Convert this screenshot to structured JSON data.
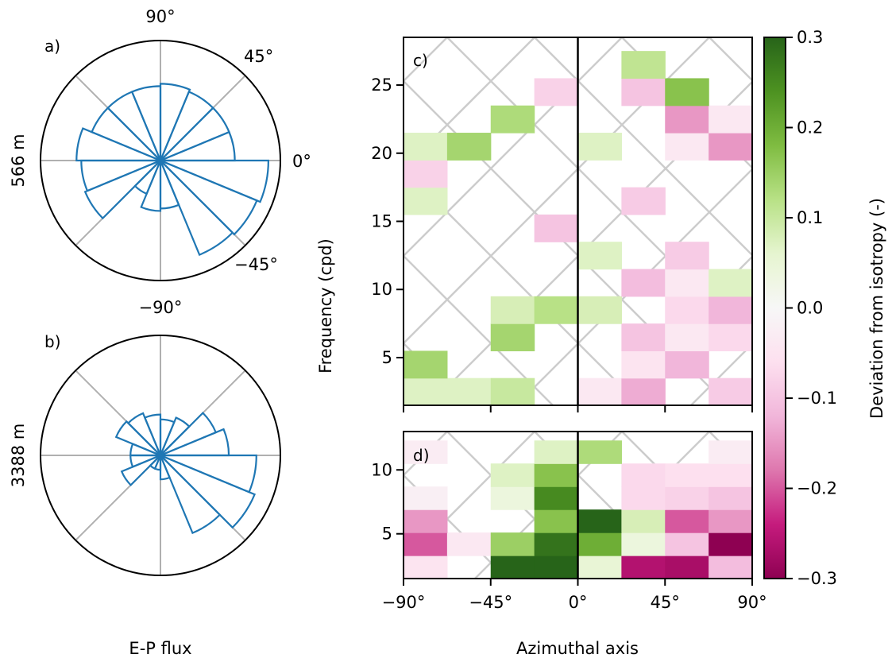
{
  "colors": {
    "rose_line": "#1f77b4",
    "grid": "#b0b0b0",
    "hatch": "#cccccc",
    "axis": "#000000"
  },
  "footer": {
    "polar_xlabel": "E-P flux"
  },
  "chart_data": [
    {
      "panel": "a)",
      "type": "polar_rose",
      "ylabel": "566 m",
      "angle_labels": [
        "90°",
        "45°",
        "0°",
        "−45°",
        "−90°"
      ],
      "bin_width_deg": 22.5,
      "bin_centers_deg": [
        11.25,
        33.75,
        56.25,
        78.75,
        101.25,
        123.75,
        146.25,
        168.75,
        191.25,
        213.75,
        236.25,
        258.75,
        281.25,
        303.75,
        326.25,
        348.75
      ],
      "magnitudes": [
        0.62,
        0.62,
        0.62,
        0.64,
        0.62,
        0.62,
        0.62,
        0.7,
        0.66,
        0.68,
        0.3,
        0.42,
        0.4,
        0.85,
        0.87,
        0.9
      ],
      "rlim": [
        0,
        1
      ]
    },
    {
      "panel": "b)",
      "type": "polar_rose",
      "ylabel": "3388 m",
      "angle_labels": [
        "90°",
        "45°",
        "0°",
        "−45°",
        "−90°"
      ],
      "bin_width_deg": 22.5,
      "bin_centers_deg": [
        11.25,
        33.75,
        56.25,
        78.75,
        101.25,
        123.75,
        146.25,
        168.75,
        191.25,
        213.75,
        236.25,
        258.75,
        281.25,
        303.75,
        326.25,
        348.75
      ],
      "magnitudes": [
        0.57,
        0.5,
        0.34,
        0.3,
        0.34,
        0.38,
        0.4,
        0.25,
        0.25,
        0.35,
        0.12,
        0.12,
        0.2,
        0.7,
        0.85,
        0.8
      ],
      "rlim": [
        0,
        1
      ]
    },
    {
      "panel": "c)",
      "type": "heatmap",
      "xlabel": "Azimuthal axis",
      "ylabel": "Frequency (cpd)",
      "x_edges": [
        -90,
        -67.5,
        -45,
        -22.5,
        0,
        22.5,
        45,
        67.5,
        90
      ],
      "xlim": [
        -90,
        90
      ],
      "xticks": [
        -90,
        -45,
        0,
        45,
        90
      ],
      "xtick_labels": [
        "−90°",
        "−45°",
        "0°",
        "45°",
        "90°"
      ],
      "ylim": [
        1.5,
        28.5
      ],
      "y_edges": [
        1.5,
        3.5,
        5.5,
        7.5,
        9.5,
        11.5,
        13.5,
        15.5,
        17.5,
        19.5,
        21.5,
        23.5,
        25.5,
        27.5
      ],
      "yticks": [
        5,
        10,
        15,
        20,
        25
      ],
      "cells": [
        [
          -90,
          1.5,
          0.07
        ],
        [
          -67.5,
          1.5,
          0.07
        ],
        [
          -45,
          1.5,
          0.1
        ],
        [
          0,
          1.5,
          -0.04
        ],
        [
          22.5,
          1.5,
          -0.13
        ],
        [
          67.5,
          1.5,
          -0.09
        ],
        [
          -90,
          3.5,
          0.14
        ],
        [
          22.5,
          3.5,
          -0.05
        ],
        [
          45,
          3.5,
          -0.12
        ],
        [
          -45,
          5.5,
          0.14
        ],
        [
          22.5,
          5.5,
          -0.1
        ],
        [
          45,
          5.5,
          -0.04
        ],
        [
          67.5,
          5.5,
          -0.07
        ],
        [
          -45,
          7.5,
          0.08
        ],
        [
          -22.5,
          7.5,
          0.12
        ],
        [
          0,
          7.5,
          0.08
        ],
        [
          45,
          7.5,
          -0.07
        ],
        [
          67.5,
          7.5,
          -0.12
        ],
        [
          22.5,
          9.5,
          -0.11
        ],
        [
          45,
          9.5,
          -0.04
        ],
        [
          67.5,
          9.5,
          0.07
        ],
        [
          0,
          11.5,
          0.07
        ],
        [
          45,
          11.5,
          -0.09
        ],
        [
          -22.5,
          13.5,
          -0.1
        ],
        [
          -90,
          15.5,
          0.07
        ],
        [
          22.5,
          15.5,
          -0.09
        ],
        [
          -90,
          17.5,
          -0.08
        ],
        [
          -90,
          19.5,
          0.07
        ],
        [
          -67.5,
          19.5,
          0.14
        ],
        [
          0,
          19.5,
          0.07
        ],
        [
          45,
          19.5,
          -0.04
        ],
        [
          67.5,
          19.5,
          -0.15
        ],
        [
          -45,
          21.5,
          0.13
        ],
        [
          45,
          21.5,
          -0.15
        ],
        [
          67.5,
          21.5,
          -0.04
        ],
        [
          -22.5,
          23.5,
          -0.08
        ],
        [
          22.5,
          23.5,
          -0.1
        ],
        [
          45,
          23.5,
          0.17
        ],
        [
          22.5,
          25.5,
          0.11
        ]
      ]
    },
    {
      "panel": "d)",
      "type": "heatmap",
      "xlabel": "Azimuthal axis",
      "ylabel": "Frequency (cpd)",
      "x_edges": [
        -90,
        -67.5,
        -45,
        -22.5,
        0,
        22.5,
        45,
        67.5,
        90
      ],
      "xlim": [
        -90,
        90
      ],
      "xticks": [
        -90,
        -45,
        0,
        45,
        90
      ],
      "xtick_labels": [
        "−90°",
        "−45°",
        "0°",
        "45°",
        "90°"
      ],
      "ylim": [
        1.5,
        13
      ],
      "y_edges": [
        1.5,
        3.3,
        5.1,
        6.9,
        8.7,
        10.5,
        12.3,
        13
      ],
      "yticks": [
        5,
        10
      ],
      "cells": [
        [
          -90,
          1.5,
          -0.05
        ],
        [
          -45,
          1.5,
          0.3
        ],
        [
          -22.5,
          1.5,
          0.3
        ],
        [
          0,
          1.5,
          0.05
        ],
        [
          22.5,
          1.5,
          -0.26
        ],
        [
          45,
          1.5,
          -0.27
        ],
        [
          67.5,
          1.5,
          -0.11
        ],
        [
          -90,
          3.3,
          -0.2
        ],
        [
          -67.5,
          3.3,
          -0.04
        ],
        [
          -45,
          3.3,
          0.15
        ],
        [
          -22.5,
          3.3,
          0.28
        ],
        [
          0,
          3.3,
          0.2
        ],
        [
          22.5,
          3.3,
          0.04
        ],
        [
          45,
          3.3,
          -0.1
        ],
        [
          67.5,
          3.3,
          -0.3
        ],
        [
          -90,
          5.1,
          -0.15
        ],
        [
          -22.5,
          5.1,
          0.17
        ],
        [
          0,
          5.1,
          0.3
        ],
        [
          22.5,
          5.1,
          0.08
        ],
        [
          45,
          5.1,
          -0.2
        ],
        [
          67.5,
          5.1,
          -0.15
        ],
        [
          -90,
          6.9,
          -0.02
        ],
        [
          -45,
          6.9,
          0.04
        ],
        [
          -22.5,
          6.9,
          0.25
        ],
        [
          22.5,
          6.9,
          -0.07
        ],
        [
          45,
          6.9,
          -0.08
        ],
        [
          67.5,
          6.9,
          -0.1
        ],
        [
          -45,
          8.7,
          0.07
        ],
        [
          -22.5,
          8.7,
          0.17
        ],
        [
          22.5,
          8.7,
          -0.07
        ],
        [
          45,
          8.7,
          -0.06
        ],
        [
          67.5,
          8.7,
          -0.06
        ],
        [
          -90,
          10.5,
          -0.03
        ],
        [
          -22.5,
          10.5,
          0.07
        ],
        [
          0,
          10.5,
          0.13
        ],
        [
          67.5,
          10.5,
          -0.03
        ]
      ]
    },
    {
      "panel": "colorbar",
      "type": "colorbar",
      "label": "Deviation from isotropy (-)",
      "colormap": "PiYG",
      "range": [
        -0.3,
        0.3
      ],
      "ticks": [
        -0.3,
        -0.2,
        -0.1,
        0.0,
        0.1,
        0.2,
        0.3
      ],
      "tick_labels": [
        "−0.3",
        "−0.2",
        "−0.1",
        "0.0",
        "0.1",
        "0.2",
        "0.3"
      ]
    }
  ]
}
